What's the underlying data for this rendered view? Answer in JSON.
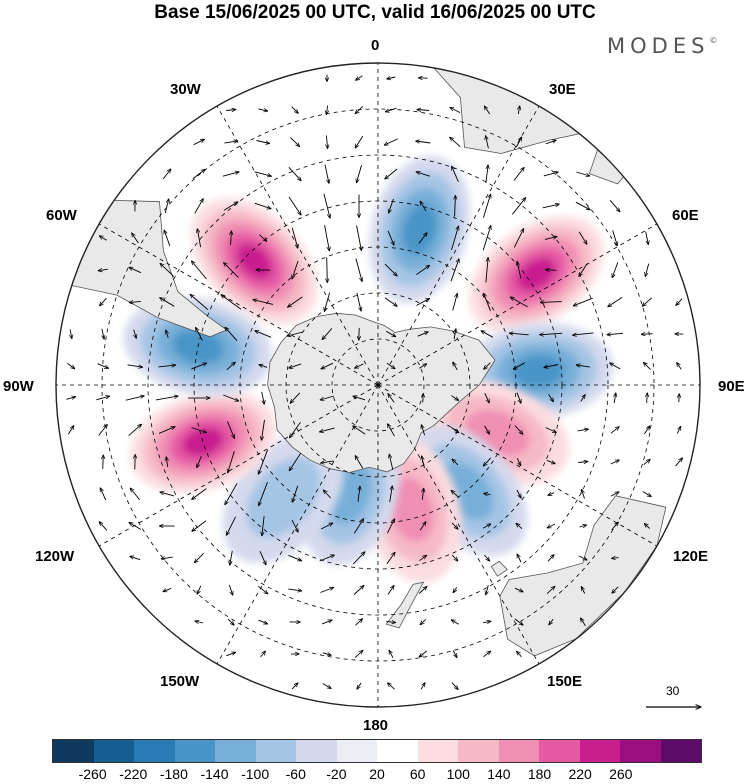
{
  "title": "Base 15/06/2025 00 UTC, valid 16/06/2025 00 UTC",
  "brand": "MODES",
  "brand_mark": "©",
  "lon_labels": {
    "l0": "0",
    "l30e": "30E",
    "l60e": "60E",
    "l90e": "90E",
    "l120e": "120E",
    "l150e": "150E",
    "l180": "180",
    "l150w": "150W",
    "l120w": "120W",
    "l90w": "90W",
    "l60w": "60W",
    "l30w": "30W"
  },
  "vector_scale": {
    "label": "30"
  },
  "colorbar": {
    "colors": [
      "#0e3a5f",
      "#155e92",
      "#2a7ab5",
      "#4a95c8",
      "#77afd8",
      "#a5c5e5",
      "#d4d9ed",
      "#eceef6",
      "#ffffff",
      "#fbdde0",
      "#f6b9c6",
      "#f08fb4",
      "#e65aa5",
      "#c91e8e",
      "#9a0e80",
      "#5e0a6a"
    ],
    "ticks": [
      "-260",
      "-220",
      "-180",
      "-140",
      "-100",
      "-60",
      "-20",
      "20",
      "60",
      "100",
      "140",
      "180",
      "220",
      "260"
    ]
  },
  "colors": {
    "land": "#e9e9e9",
    "grid": "#000000"
  },
  "anomaly_centers": [
    {
      "lon": -45,
      "lat": -52,
      "sign": "positive",
      "level": 220
    },
    {
      "lon": 15,
      "lat": -55,
      "sign": "negative",
      "level": -180
    },
    {
      "lon": 55,
      "lat": -48,
      "sign": "positive",
      "level": 220
    },
    {
      "lon": 85,
      "lat": -55,
      "sign": "negative",
      "level": -180
    },
    {
      "lon": 112,
      "lat": -62,
      "sign": "positive",
      "level": 140
    },
    {
      "lon": 140,
      "lat": -60,
      "sign": "negative",
      "level": -140
    },
    {
      "lon": 165,
      "lat": -62,
      "sign": "positive",
      "level": 140
    },
    {
      "lon": -165,
      "lat": -66,
      "sign": "negative",
      "level": -140
    },
    {
      "lon": -140,
      "lat": -58,
      "sign": "negative",
      "level": -100
    },
    {
      "lon": -108,
      "lat": -50,
      "sign": "positive",
      "level": 220
    },
    {
      "lon": -78,
      "lat": -50,
      "sign": "negative",
      "level": -180
    }
  ]
}
